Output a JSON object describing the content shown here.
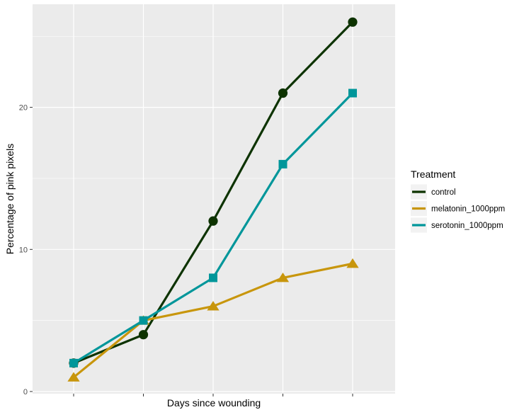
{
  "chart_data": {
    "type": "line",
    "xlabel": "Days since wounding",
    "ylabel": "Percentage of pink pixels",
    "x": [
      1,
      2,
      3,
      4,
      5
    ],
    "x_tick_labels": [],
    "ylim": [
      0,
      26
    ],
    "y_ticks": [
      0,
      10,
      20
    ],
    "y_tick_labels": [
      "0",
      "10",
      "20"
    ],
    "grid": true,
    "legend": {
      "title": "Treatment",
      "placement": "right"
    },
    "series": [
      {
        "name": "control",
        "values": [
          2,
          4,
          12,
          21,
          26
        ],
        "color": "#0d3300",
        "marker": "circle"
      },
      {
        "name": "melatonin_1000ppm",
        "values": [
          1,
          5,
          6,
          8,
          9
        ],
        "color": "#c8960c",
        "marker": "triangle"
      },
      {
        "name": "serotonin_1000ppm",
        "values": [
          2,
          5,
          8,
          16,
          21
        ],
        "color": "#00969a",
        "marker": "square"
      }
    ]
  }
}
